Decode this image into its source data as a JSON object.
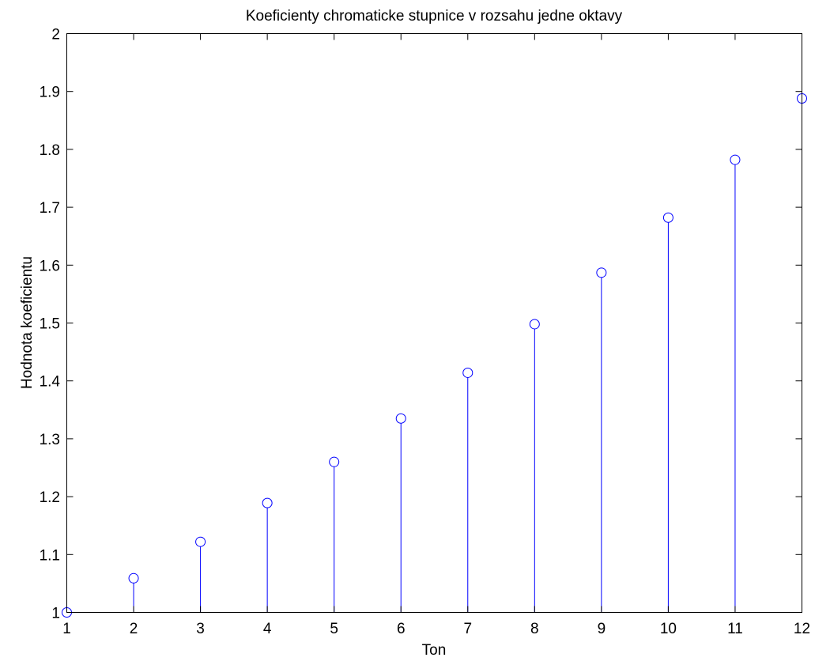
{
  "chart_data": {
    "type": "stem",
    "title": "Koeficienty chromaticke stupnice v rozsahu jedne oktavy",
    "xlabel": "Ton",
    "ylabel": "Hodnota koeficientu",
    "xlim": [
      1,
      12
    ],
    "ylim": [
      1,
      2
    ],
    "xticks": [
      "1",
      "2",
      "3",
      "4",
      "5",
      "6",
      "7",
      "8",
      "9",
      "10",
      "11",
      "12"
    ],
    "yticks": [
      "1",
      "1.1",
      "1.2",
      "1.3",
      "1.4",
      "1.5",
      "1.6",
      "1.7",
      "1.8",
      "1.9",
      "2"
    ],
    "grid": false,
    "marker": "circle",
    "color": "#0000ff",
    "x": [
      1,
      2,
      3,
      4,
      5,
      6,
      7,
      8,
      9,
      10,
      11,
      12
    ],
    "values": [
      1.0,
      1.059,
      1.122,
      1.189,
      1.26,
      1.335,
      1.414,
      1.498,
      1.587,
      1.682,
      1.782,
      1.888
    ]
  }
}
